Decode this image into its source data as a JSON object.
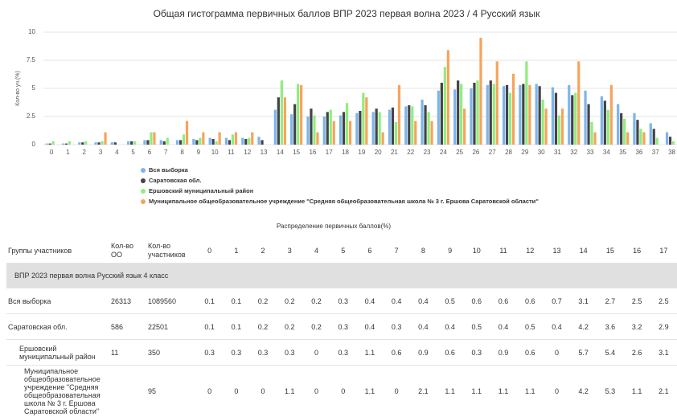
{
  "chart_data": {
    "type": "bar",
    "title": "Общая гистограмма первичных баллов ВПР 2023 первая волна 2023 / 4 Русский язык",
    "y_label": "Кол-во уч.(%)",
    "x_label": "Распределение первичных баллов(%)",
    "categories": [
      "0",
      "1",
      "2",
      "3",
      "4",
      "5",
      "6",
      "7",
      "8",
      "9",
      "10",
      "11",
      "12",
      "13",
      "14",
      "15",
      "16",
      "17",
      "18",
      "19",
      "20",
      "21",
      "22",
      "23",
      "24",
      "25",
      "26",
      "27",
      "28",
      "29",
      "30",
      "31",
      "32",
      "33",
      "34",
      "35",
      "36",
      "37",
      "38"
    ],
    "ylim": [
      0,
      10
    ],
    "yticks": [
      0,
      2.5,
      5,
      7.5,
      10
    ],
    "grid": true,
    "series": [
      {
        "name": "Вся выборка",
        "color": "#7cb5ec",
        "values": [
          0.1,
          0.1,
          0.2,
          0.2,
          0.2,
          0.3,
          0.4,
          0.4,
          0.4,
          0.5,
          0.6,
          0.6,
          0.6,
          0.7,
          3.1,
          2.7,
          2.5,
          2.5,
          2.6,
          2.8,
          2.9,
          3.1,
          3.4,
          4.0,
          4.8,
          4.9,
          5.0,
          5.3,
          5.2,
          5.3,
          5.4,
          5.1,
          5.3,
          4.8,
          4.3,
          3.6,
          2.8,
          1.9,
          1.1
        ]
      },
      {
        "name": "Саратовская обл.",
        "color": "#434348",
        "values": [
          0.1,
          0.1,
          0.2,
          0.2,
          0.2,
          0.3,
          0.4,
          0.3,
          0.4,
          0.4,
          0.5,
          0.4,
          0.5,
          0.4,
          4.2,
          3.6,
          3.2,
          2.9,
          2.9,
          3.0,
          3.2,
          3.3,
          3.5,
          3.5,
          5.5,
          5.7,
          5.5,
          5.7,
          5.3,
          5.4,
          5.2,
          4.6,
          4.4,
          3.6,
          3.9,
          2.8,
          2.2,
          1.4,
          0.7
        ]
      },
      {
        "name": "Ершовский муниципальный район",
        "color": "#90ed7d",
        "values": [
          0.3,
          0.3,
          0.3,
          0.3,
          0,
          0.3,
          1.1,
          0.6,
          0.9,
          0.6,
          0.3,
          0.9,
          0.6,
          0,
          5.7,
          5.4,
          2.6,
          3.1,
          3.7,
          4.6,
          2.9,
          2.0,
          3.4,
          2.9,
          6.9,
          5.4,
          5.7,
          5.4,
          4.6,
          7.4,
          4.0,
          2.6,
          4.6,
          2.0,
          3.1,
          2.3,
          1.4,
          0.6,
          0.3
        ]
      },
      {
        "name": "Муниципальное общеобразовательное учреждение \"Средняя общеобразовательная школа № 3 г. Ершова Саратовской области\"",
        "color": "#f7a35c",
        "values": [
          0,
          0,
          0,
          1.1,
          0,
          0,
          1.1,
          0,
          2.1,
          1.1,
          1.1,
          1.1,
          1.1,
          0,
          4.2,
          5.3,
          1.1,
          2.1,
          2.1,
          4.2,
          1.1,
          5.3,
          2.1,
          2.1,
          8.4,
          3.2,
          9.5,
          7.4,
          6.3,
          5.3,
          3.2,
          3.2,
          7.4,
          1.1,
          5.3,
          1.1,
          1.1,
          0,
          0
        ]
      }
    ]
  },
  "table": {
    "columns": [
      "Группы участников",
      "Кол-во ОО",
      "Кол-во участников",
      "0",
      "1",
      "2",
      "3",
      "4",
      "5",
      "6",
      "7",
      "8",
      "9",
      "10",
      "11",
      "12",
      "13",
      "14",
      "15",
      "16",
      "17"
    ],
    "group": "ВПР 2023 первая волна Русский язык 4 класс",
    "rows": [
      [
        "Вся выборка",
        26313,
        1089560,
        0.1,
        0.1,
        0.2,
        0.2,
        0.2,
        0.3,
        0.4,
        0.4,
        0.4,
        0.5,
        0.6,
        0.6,
        0.6,
        0.7,
        3.1,
        2.7,
        2.5,
        2.5
      ],
      [
        "Саратовская обл.",
        586,
        22501,
        0.1,
        0.1,
        0.2,
        0.2,
        0.2,
        0.3,
        0.4,
        0.3,
        0.4,
        0.4,
        0.5,
        0.4,
        0.5,
        0.4,
        4.2,
        3.6,
        3.2,
        2.9
      ],
      [
        "Ершовский муниципальный район",
        11,
        350,
        0.3,
        0.3,
        0.3,
        0.3,
        0,
        0.3,
        1.1,
        0.6,
        0.9,
        0.6,
        0.3,
        0.9,
        0.6,
        0,
        5.7,
        5.4,
        2.6,
        3.1
      ],
      [
        "Муниципальное общеобразовательное учреждение \"Средняя общеобразовательная школа № 3 г. Ершова Саратовской области\"",
        "",
        95,
        0,
        0,
        0,
        1.1,
        0,
        0,
        1.1,
        0,
        2.1,
        1.1,
        1.1,
        1.1,
        1.1,
        0,
        4.2,
        5.3,
        1.1,
        2.1
      ]
    ]
  }
}
